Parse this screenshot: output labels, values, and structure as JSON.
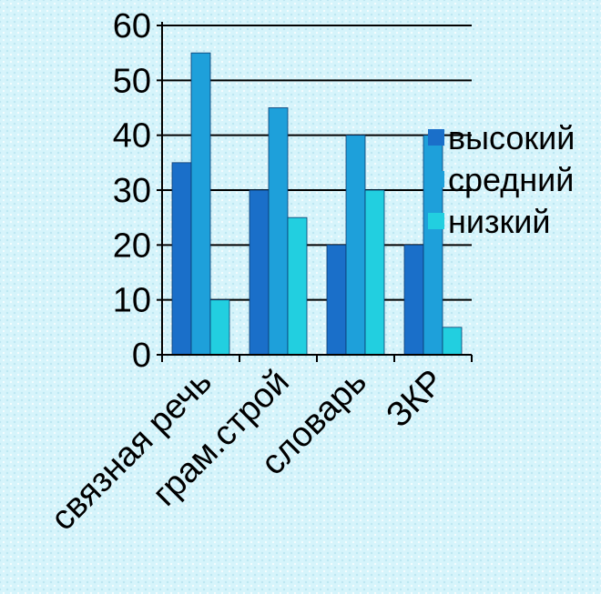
{
  "chart_data": {
    "type": "bar",
    "categories": [
      "связная речь",
      "грам.строй",
      "словарь",
      "ЗКР"
    ],
    "series": [
      {
        "name": "высокий",
        "color": "#1a6fc9",
        "values": [
          35,
          30,
          20,
          20
        ]
      },
      {
        "name": "средний",
        "color": "#1ea0da",
        "values": [
          55,
          45,
          40,
          40
        ]
      },
      {
        "name": "низкий",
        "color": "#22cfe0",
        "values": [
          10,
          25,
          30,
          5
        ]
      }
    ],
    "yticks": [
      0,
      10,
      20,
      30,
      40,
      50,
      60
    ],
    "ylim": [
      0,
      60
    ],
    "grid": true,
    "legend_position": "right"
  }
}
